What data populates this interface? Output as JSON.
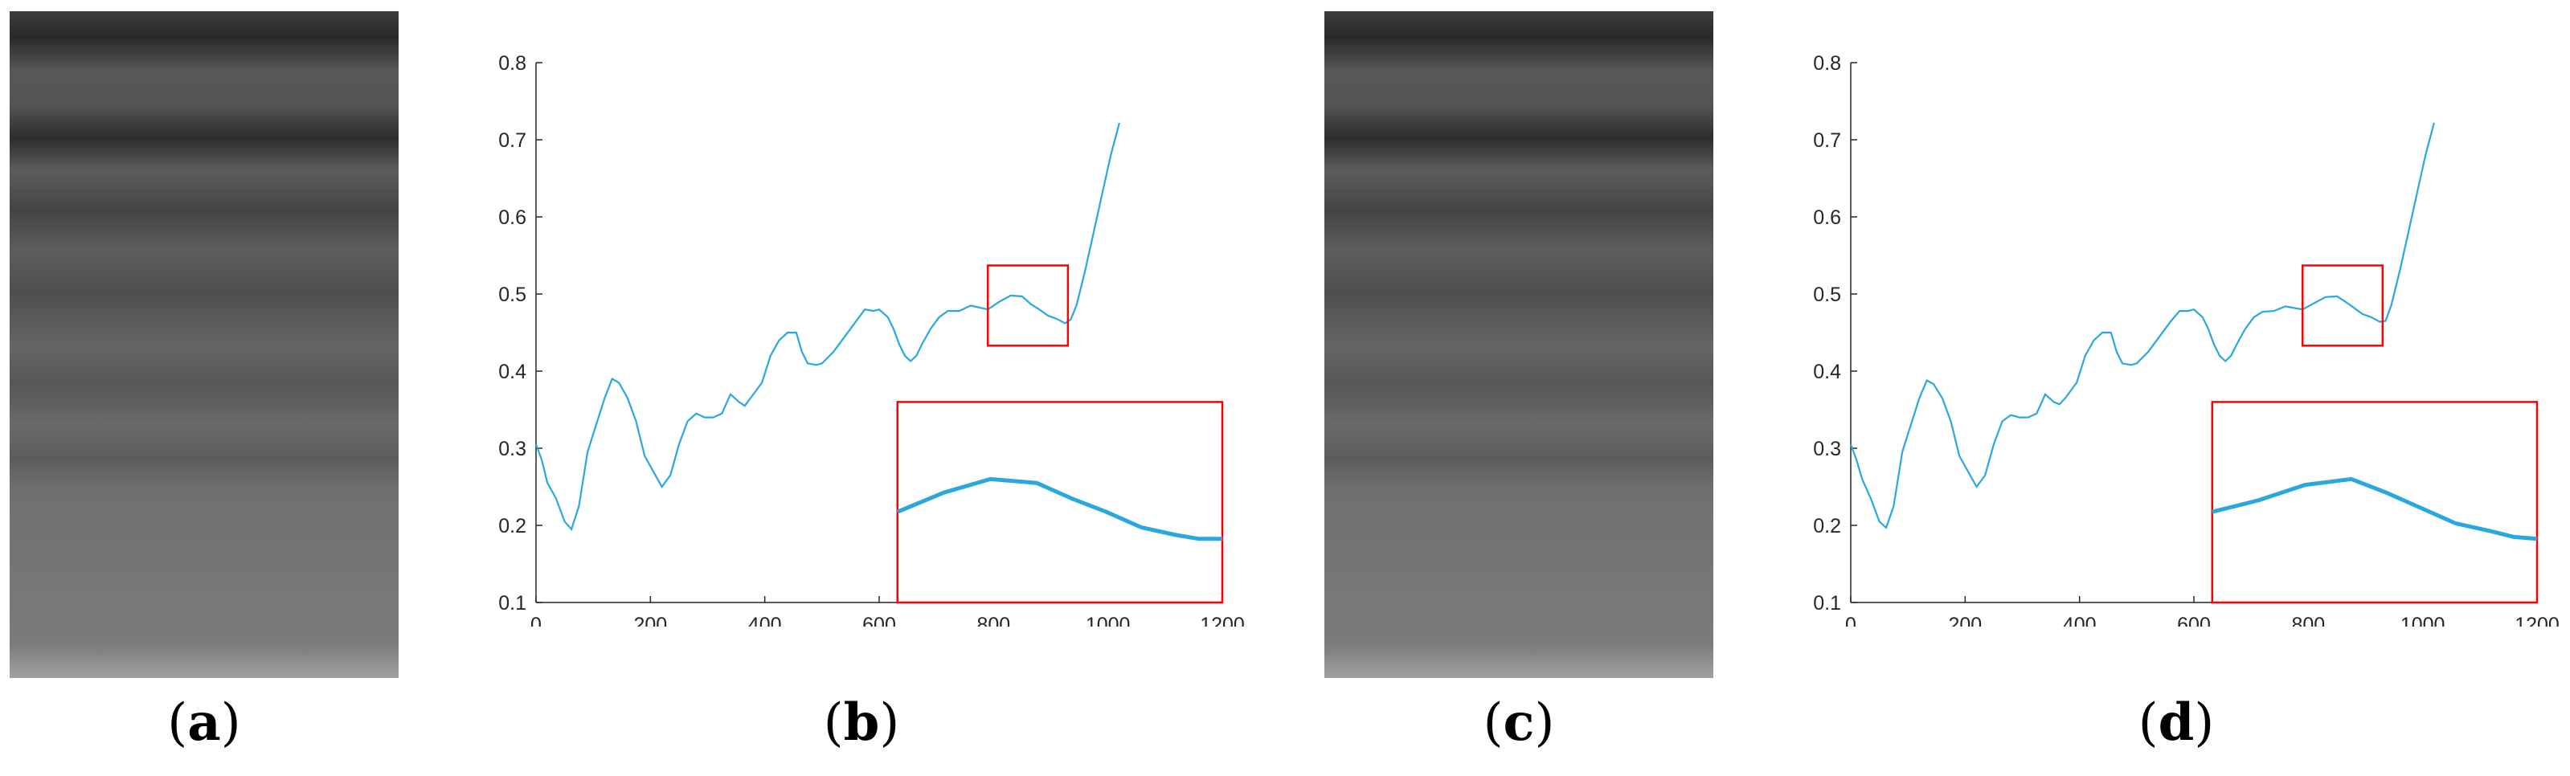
{
  "captions": {
    "a": {
      "open": "(",
      "letter": "a",
      "close": ")"
    },
    "b": {
      "open": "(",
      "letter": "b",
      "close": ")"
    },
    "c": {
      "open": "(",
      "letter": "c",
      "close": ")"
    },
    "d": {
      "open": "(",
      "letter": "d",
      "close": ")"
    }
  },
  "colors": {
    "line": "#2aa8de",
    "zoom_box": "#ff0000",
    "axis": "#262626"
  },
  "chart_data": [
    {
      "panel": "b",
      "type": "line",
      "xlim": [
        0,
        1200
      ],
      "ylim": [
        0.1,
        0.8
      ],
      "xticks": [
        0,
        200,
        400,
        600,
        800,
        1000,
        1200
      ],
      "yticks": [
        0.1,
        0.2,
        0.3,
        0.4,
        0.5,
        0.6,
        0.7,
        0.8
      ],
      "grid": false,
      "series": [
        {
          "x": [
            0,
            10,
            20,
            35,
            50,
            62,
            75,
            90,
            105,
            120,
            133,
            145,
            160,
            175,
            190,
            205,
            220,
            235,
            250,
            265,
            280,
            295,
            310,
            325,
            340,
            355,
            365,
            375,
            385,
            395,
            410,
            425,
            440,
            455,
            465,
            475,
            490,
            500,
            520,
            540,
            560,
            575,
            590,
            600,
            615,
            625,
            635,
            645,
            655,
            665,
            675,
            690,
            705,
            720,
            740,
            760,
            790,
            810,
            830,
            850,
            865,
            880,
            895,
            910,
            925,
            935,
            945,
            960,
            975,
            990,
            1005,
            1020
          ],
          "y": [
            0.305,
            0.285,
            0.255,
            0.235,
            0.205,
            0.195,
            0.225,
            0.295,
            0.33,
            0.365,
            0.39,
            0.385,
            0.365,
            0.335,
            0.29,
            0.27,
            0.25,
            0.265,
            0.305,
            0.335,
            0.345,
            0.34,
            0.34,
            0.345,
            0.37,
            0.36,
            0.355,
            0.365,
            0.375,
            0.385,
            0.42,
            0.44,
            0.45,
            0.45,
            0.425,
            0.41,
            0.408,
            0.41,
            0.425,
            0.445,
            0.465,
            0.48,
            0.478,
            0.48,
            0.47,
            0.455,
            0.435,
            0.42,
            0.413,
            0.42,
            0.435,
            0.455,
            0.47,
            0.478,
            0.478,
            0.485,
            0.48,
            0.49,
            0.498,
            0.497,
            0.487,
            0.48,
            0.472,
            0.468,
            0.462,
            0.467,
            0.485,
            0.53,
            0.58,
            0.63,
            0.68,
            0.722
          ]
        }
      ],
      "zoom_region": {
        "x": [
          790,
          930
        ],
        "y": [
          0.433,
          0.537
        ]
      },
      "inset": {
        "x": [
          790,
          810,
          830,
          850,
          865,
          880,
          895,
          910,
          920,
          930
        ],
        "y": [
          0.48,
          0.49,
          0.497,
          0.495,
          0.487,
          0.48,
          0.472,
          0.468,
          0.466,
          0.466
        ]
      }
    },
    {
      "panel": "d",
      "type": "line",
      "xlim": [
        0,
        1200
      ],
      "ylim": [
        0.1,
        0.8
      ],
      "xticks": [
        0,
        200,
        400,
        600,
        800,
        1000,
        1200
      ],
      "yticks": [
        0.1,
        0.2,
        0.3,
        0.4,
        0.5,
        0.6,
        0.7,
        0.8
      ],
      "grid": false,
      "series": [
        {
          "x": [
            0,
            10,
            20,
            35,
            50,
            62,
            75,
            90,
            105,
            120,
            133,
            145,
            160,
            175,
            190,
            205,
            220,
            235,
            250,
            265,
            280,
            295,
            310,
            325,
            340,
            355,
            365,
            375,
            385,
            395,
            410,
            425,
            440,
            455,
            465,
            475,
            490,
            500,
            520,
            540,
            560,
            575,
            590,
            600,
            615,
            625,
            635,
            645,
            655,
            665,
            675,
            690,
            705,
            720,
            740,
            760,
            790,
            810,
            830,
            850,
            865,
            880,
            895,
            910,
            925,
            935,
            945,
            960,
            975,
            990,
            1005,
            1020
          ],
          "y": [
            0.305,
            0.285,
            0.26,
            0.235,
            0.205,
            0.197,
            0.225,
            0.295,
            0.33,
            0.365,
            0.388,
            0.383,
            0.365,
            0.335,
            0.29,
            0.27,
            0.25,
            0.265,
            0.305,
            0.335,
            0.343,
            0.34,
            0.34,
            0.345,
            0.37,
            0.36,
            0.357,
            0.365,
            0.375,
            0.385,
            0.42,
            0.44,
            0.45,
            0.45,
            0.425,
            0.41,
            0.408,
            0.41,
            0.425,
            0.445,
            0.465,
            0.478,
            0.478,
            0.48,
            0.47,
            0.455,
            0.435,
            0.42,
            0.413,
            0.42,
            0.435,
            0.455,
            0.47,
            0.477,
            0.478,
            0.484,
            0.48,
            0.488,
            0.496,
            0.497,
            0.49,
            0.482,
            0.474,
            0.47,
            0.464,
            0.465,
            0.485,
            0.53,
            0.58,
            0.63,
            0.68,
            0.722
          ]
        }
      ],
      "zoom_region": {
        "x": [
          790,
          930
        ],
        "y": [
          0.433,
          0.537
        ]
      },
      "inset": {
        "x": [
          790,
          810,
          830,
          850,
          865,
          880,
          895,
          910,
          920,
          930
        ],
        "y": [
          0.48,
          0.486,
          0.494,
          0.497,
          0.49,
          0.482,
          0.474,
          0.47,
          0.467,
          0.466
        ]
      }
    }
  ]
}
